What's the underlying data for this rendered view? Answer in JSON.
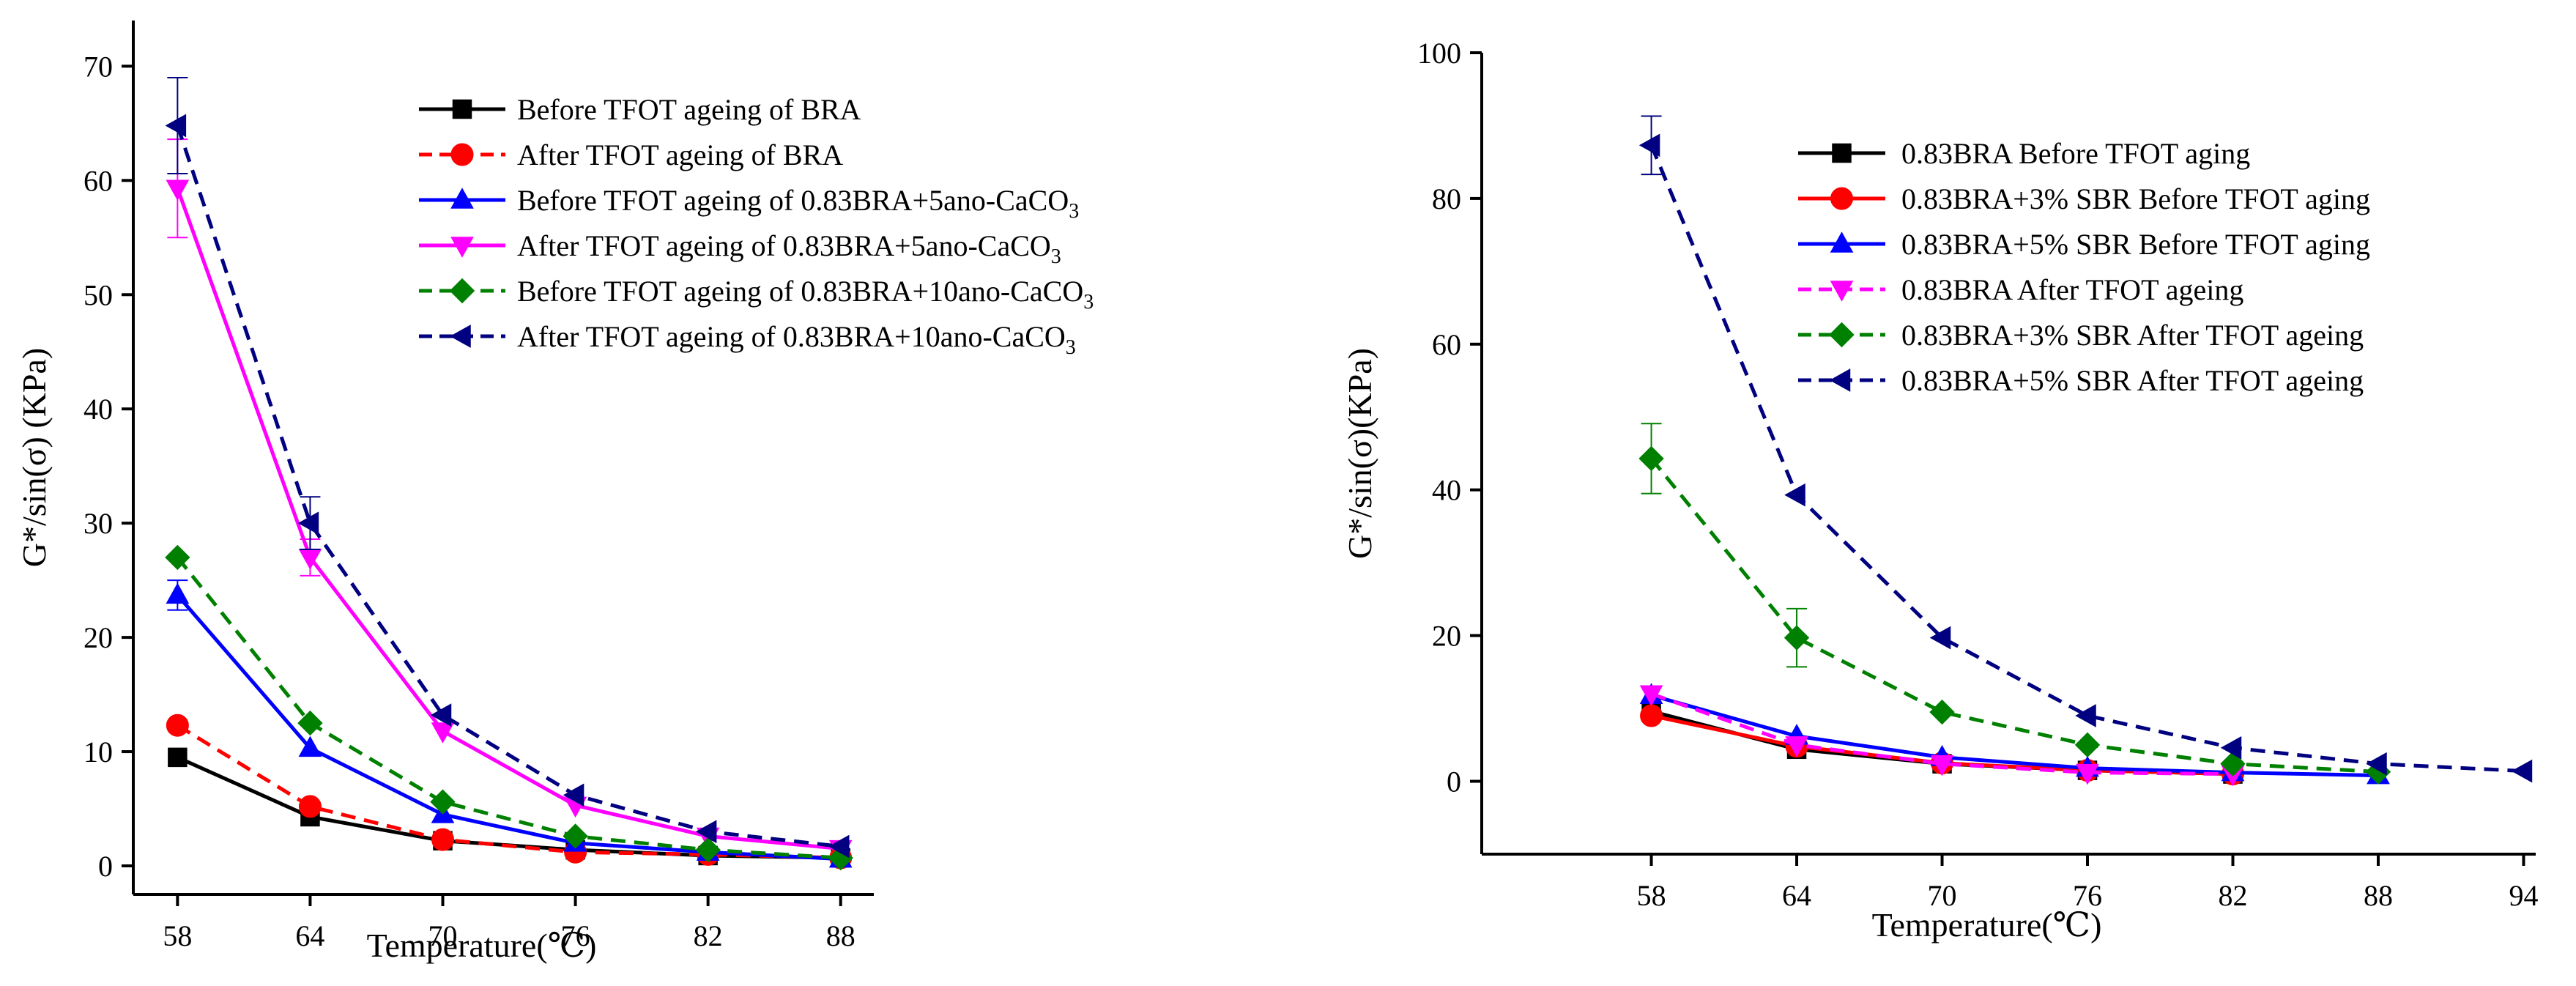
{
  "chart_data": [
    {
      "type": "line",
      "xlabel": "Temperature(℃)",
      "ylabel": "G*/sin(σ)  (KPa)",
      "x": [
        58,
        64,
        70,
        76,
        82,
        88
      ],
      "xticks": [
        "58",
        "64",
        "70",
        "76",
        "82",
        "88"
      ],
      "xlim": [
        56,
        89.5
      ],
      "ylim": [
        -2.5,
        74
      ],
      "yticks": [
        0,
        10,
        20,
        30,
        40,
        50,
        60,
        70
      ],
      "grid": false,
      "legend_position": "top-right",
      "series": [
        {
          "name": "Before TFOT ageing of BRA",
          "color": "#000000",
          "marker": "square",
          "dash": false,
          "values": [
            9.5,
            4.3,
            2.2,
            1.4,
            0.9,
            0.7
          ]
        },
        {
          "name": "After TFOT ageing of BRA",
          "color": "#ff0000",
          "marker": "circle",
          "dash": true,
          "values": [
            12.3,
            5.2,
            2.3,
            1.2,
            1.0,
            0.7
          ]
        },
        {
          "name": "Before TFOT ageing of 0.83BRA+5ano-CaCO3",
          "color": "#0000ff",
          "marker": "triangle-up",
          "dash": false,
          "values": [
            23.7,
            10.3,
            4.5,
            2.0,
            1.2,
            0.6
          ],
          "errors": [
            1.3,
            0,
            0,
            0,
            0,
            0
          ]
        },
        {
          "name": "After TFOT ageing of 0.83BRA+5ano-CaCO3",
          "color": "#ff00ff",
          "marker": "triangle-down",
          "dash": false,
          "values": [
            59.3,
            27.0,
            11.8,
            5.3,
            2.6,
            1.5
          ],
          "errors": [
            4.3,
            1.6,
            0,
            0,
            0,
            0
          ]
        },
        {
          "name": "Before TFOT ageing of 0.83BRA+10ano-CaCO3",
          "color": "#008000",
          "marker": "diamond",
          "dash": true,
          "values": [
            27.0,
            12.5,
            5.6,
            2.6,
            1.4,
            0.7
          ]
        },
        {
          "name": "After TFOT ageing of 0.83BRA+10ano-CaCO3",
          "color": "#000080",
          "marker": "triangle-left",
          "dash": true,
          "values": [
            64.8,
            30.0,
            13.2,
            6.2,
            3.0,
            1.7
          ],
          "errors": [
            4.2,
            2.3,
            0,
            0,
            0,
            0
          ]
        }
      ]
    },
    {
      "type": "line",
      "xlabel": "Temperature(℃)",
      "ylabel": "G*/sin(σ)(KPa)",
      "x": [
        58,
        64,
        70,
        76,
        82,
        88,
        94
      ],
      "xticks": [
        "58",
        "64",
        "70",
        "76",
        "82",
        "88",
        "94"
      ],
      "xlim": [
        51,
        94.5
      ],
      "ylim": [
        -10,
        100
      ],
      "yticks": [
        0,
        20,
        40,
        60,
        80,
        100
      ],
      "grid": false,
      "legend_position": "top-right",
      "series": [
        {
          "name": "0.83BRA Before TFOT aging",
          "color": "#000000",
          "marker": "square",
          "dash": false,
          "values": [
            9.6,
            4.4,
            2.4,
            1.5,
            1.0,
            null,
            null
          ]
        },
        {
          "name": "0.83BRA+3% SBR Before TFOT aging",
          "color": "#ff0000",
          "marker": "circle",
          "dash": false,
          "values": [
            9.0,
            4.8,
            2.5,
            1.5,
            1.0,
            null,
            null
          ]
        },
        {
          "name": "0.83BRA+5% SBR Before TFOT aging",
          "color": "#0000ff",
          "marker": "triangle-up",
          "dash": false,
          "values": [
            11.8,
            6.2,
            3.3,
            1.8,
            1.2,
            0.8,
            null
          ]
        },
        {
          "name": "0.83BRA After TFOT ageing",
          "color": "#ff00ff",
          "marker": "triangle-down",
          "dash": true,
          "values": [
            12.0,
            5.0,
            2.4,
            1.2,
            1.0,
            null,
            null
          ]
        },
        {
          "name": "0.83BRA+3% SBR After TFOT ageing",
          "color": "#008000",
          "marker": "diamond",
          "dash": true,
          "values": [
            44.3,
            19.7,
            9.5,
            5.0,
            2.4,
            1.3,
            null
          ],
          "errors": [
            4.8,
            4.0,
            0,
            0,
            0,
            0,
            0
          ]
        },
        {
          "name": "0.83BRA+5% SBR After TFOT ageing",
          "color": "#000080",
          "marker": "triangle-left",
          "dash": true,
          "values": [
            87.3,
            39.3,
            19.7,
            9.0,
            4.6,
            2.4,
            1.4
          ],
          "errors": [
            4.0,
            0,
            0,
            0,
            0,
            0,
            0
          ]
        }
      ]
    }
  ]
}
